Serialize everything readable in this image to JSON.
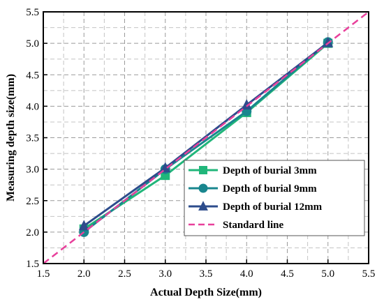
{
  "chart_data": {
    "type": "line",
    "title": "",
    "xlabel": "Actual Depth Size(mm)",
    "ylabel": "Measuring depth size(mm)",
    "xlim": [
      1.5,
      5.5
    ],
    "ylim": [
      1.5,
      5.5
    ],
    "xticks": [
      "1.5",
      "2.0",
      "2.5",
      "3.0",
      "3.5",
      "4.0",
      "4.5",
      "5.0",
      "5.5"
    ],
    "yticks": [
      "1.5",
      "2.0",
      "2.5",
      "3.0",
      "3.5",
      "4.0",
      "4.5",
      "5.0",
      "5.5"
    ],
    "grid": true,
    "legend_position": "bottom-right",
    "series": [
      {
        "name": "Depth of burial 3mm",
        "color": "#21b67a",
        "marker": "square",
        "x": [
          2,
          3,
          4,
          5
        ],
        "y": [
          2.05,
          2.9,
          3.9,
          5.0
        ]
      },
      {
        "name": "Depth of burial 9mm",
        "color": "#19868e",
        "marker": "circle",
        "x": [
          2,
          3,
          4,
          5
        ],
        "y": [
          2.0,
          3.0,
          3.92,
          5.02
        ]
      },
      {
        "name": "Depth of burial 12mm",
        "color": "#2d4c8c",
        "marker": "triangle",
        "x": [
          2,
          3,
          4,
          5
        ],
        "y": [
          2.1,
          3.02,
          4.02,
          5.01
        ]
      },
      {
        "name": "Standard line",
        "color": "#e8409b",
        "marker": "none",
        "dashed": true,
        "x": [
          1.5,
          5.5
        ],
        "y": [
          1.5,
          5.5
        ]
      }
    ]
  }
}
